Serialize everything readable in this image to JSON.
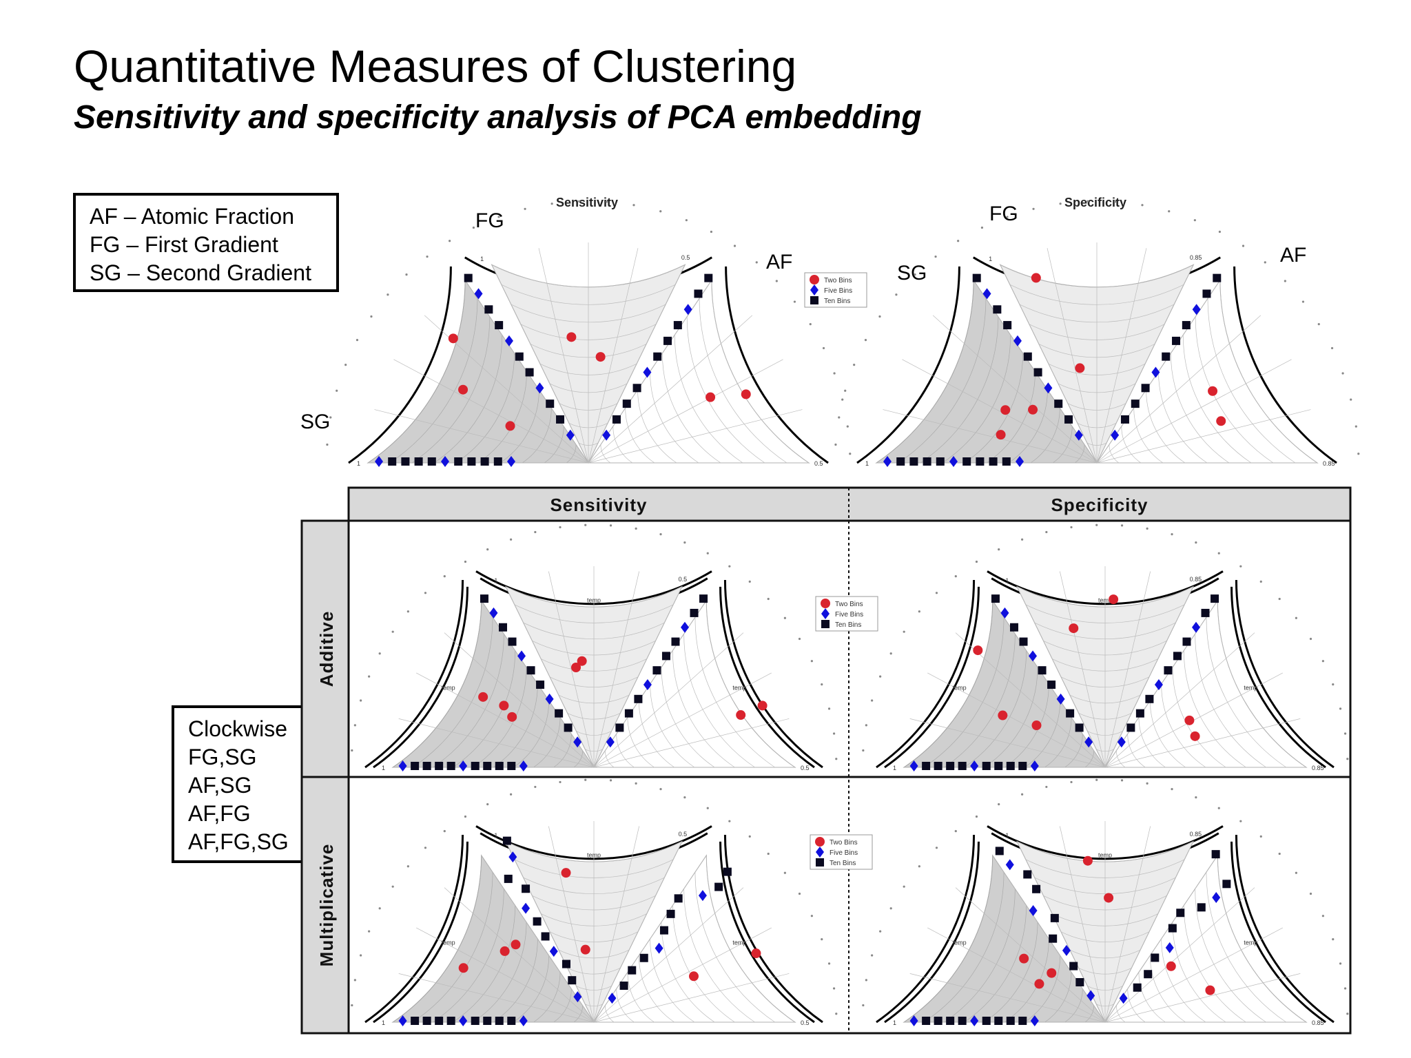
{
  "header": {
    "title": "Quantitative Measures of Clustering",
    "subtitle": "Sensitivity and specificity analysis of PCA embedding"
  },
  "abbreviations": [
    "AF – Atomic Fraction",
    "FG – First Gradient",
    "SG – Second Gradient"
  ],
  "clockwise_box": [
    "Clockwise",
    "FG,SG",
    "AF,SG",
    "AF,FG",
    "AF,FG,SG"
  ],
  "top_plots": {
    "sensitivity": {
      "title": "Sensitivity",
      "label_fg": "FG",
      "label_af": "AF",
      "label_sg": "SG",
      "scale_min": "0.5",
      "scale_max": "1"
    },
    "specificity": {
      "title": "Specificity",
      "label_fg": "FG",
      "label_af": "AF",
      "label_sg": "SG",
      "scale_min": "0.85",
      "scale_max": "1"
    }
  },
  "grid": {
    "col_headers": [
      "Sensitivity",
      "Specificity"
    ],
    "row_headers": [
      "Additive",
      "Multiplicative"
    ],
    "sector_label": "temp",
    "sens_min": "0.5",
    "spec_min": "0.85",
    "max": "1"
  },
  "legend": {
    "items": [
      {
        "label": "Two Bins",
        "color": "#d9232e",
        "marker": "circle"
      },
      {
        "label": "Five Bins",
        "color": "#1010dd",
        "marker": "diamond"
      },
      {
        "label": "Ten Bins",
        "color": "#0a0a20",
        "marker": "square"
      }
    ]
  },
  "colors": {
    "shade_dark": "#cfcfcf",
    "shade_light": "#ececec",
    "header_bg": "#d9d9d9"
  }
}
